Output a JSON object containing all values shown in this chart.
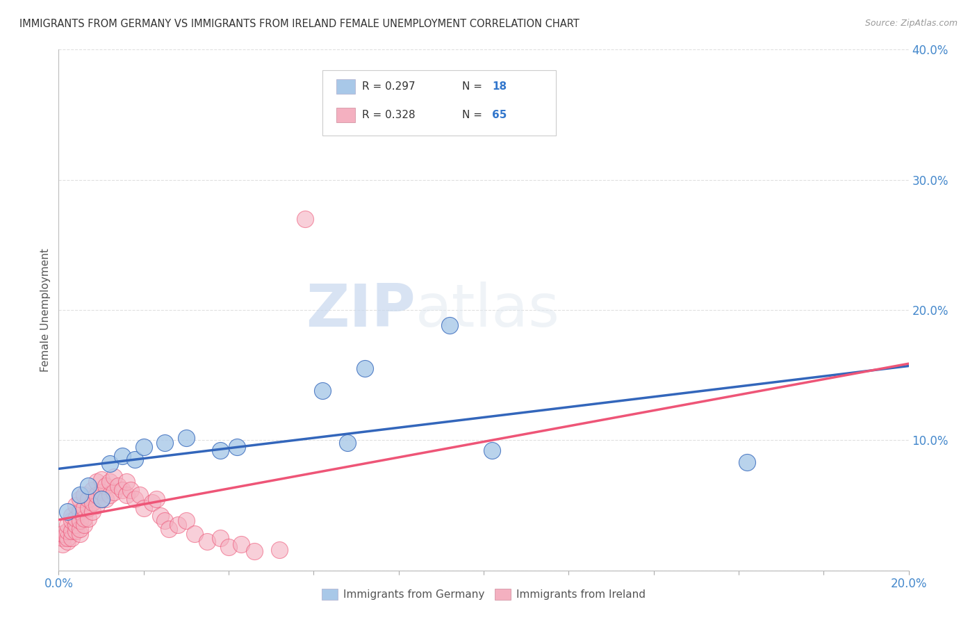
{
  "title": "IMMIGRANTS FROM GERMANY VS IMMIGRANTS FROM IRELAND FEMALE UNEMPLOYMENT CORRELATION CHART",
  "source": "Source: ZipAtlas.com",
  "ylabel": "Female Unemployment",
  "xlim": [
    0,
    0.2
  ],
  "ylim": [
    0,
    0.4
  ],
  "xticks": [
    0.0,
    0.02,
    0.04,
    0.06,
    0.08,
    0.1,
    0.12,
    0.14,
    0.16,
    0.18,
    0.2
  ],
  "yticks": [
    0.0,
    0.1,
    0.2,
    0.3,
    0.4
  ],
  "germany_color": "#a8c8e8",
  "ireland_color": "#f4b0c0",
  "germany_line_color": "#3366bb",
  "ireland_line_color": "#ee5577",
  "legend_R_germany": "R = 0.297",
  "legend_N_germany": "N = 18",
  "legend_R_ireland": "R = 0.328",
  "legend_N_ireland": "N = 65",
  "watermark_zip": "ZIP",
  "watermark_atlas": "atlas",
  "germany_x": [
    0.002,
    0.005,
    0.007,
    0.01,
    0.012,
    0.015,
    0.018,
    0.02,
    0.025,
    0.03,
    0.038,
    0.042,
    0.062,
    0.068,
    0.072,
    0.092,
    0.102,
    0.162
  ],
  "germany_y": [
    0.045,
    0.058,
    0.065,
    0.055,
    0.082,
    0.088,
    0.085,
    0.095,
    0.098,
    0.102,
    0.092,
    0.095,
    0.138,
    0.098,
    0.155,
    0.188,
    0.092,
    0.083
  ],
  "ireland_x": [
    0.001,
    0.001,
    0.001,
    0.002,
    0.002,
    0.002,
    0.002,
    0.003,
    0.003,
    0.003,
    0.003,
    0.004,
    0.004,
    0.004,
    0.004,
    0.005,
    0.005,
    0.005,
    0.005,
    0.005,
    0.006,
    0.006,
    0.006,
    0.006,
    0.007,
    0.007,
    0.007,
    0.008,
    0.008,
    0.008,
    0.009,
    0.009,
    0.009,
    0.01,
    0.01,
    0.01,
    0.011,
    0.011,
    0.012,
    0.012,
    0.013,
    0.013,
    0.014,
    0.015,
    0.016,
    0.016,
    0.017,
    0.018,
    0.019,
    0.02,
    0.022,
    0.023,
    0.024,
    0.025,
    0.026,
    0.028,
    0.03,
    0.032,
    0.035,
    0.038,
    0.04,
    0.043,
    0.046,
    0.052,
    0.058
  ],
  "ireland_y": [
    0.02,
    0.025,
    0.028,
    0.022,
    0.025,
    0.03,
    0.035,
    0.025,
    0.03,
    0.038,
    0.042,
    0.03,
    0.035,
    0.04,
    0.05,
    0.028,
    0.032,
    0.038,
    0.045,
    0.055,
    0.035,
    0.04,
    0.048,
    0.058,
    0.04,
    0.048,
    0.055,
    0.045,
    0.052,
    0.062,
    0.05,
    0.058,
    0.068,
    0.055,
    0.06,
    0.07,
    0.055,
    0.065,
    0.058,
    0.068,
    0.06,
    0.072,
    0.065,
    0.062,
    0.058,
    0.068,
    0.062,
    0.055,
    0.058,
    0.048,
    0.052,
    0.055,
    0.042,
    0.038,
    0.032,
    0.035,
    0.038,
    0.028,
    0.022,
    0.025,
    0.018,
    0.02,
    0.015,
    0.016,
    0.27
  ],
  "background_color": "#ffffff",
  "grid_color": "#e0e0e0"
}
